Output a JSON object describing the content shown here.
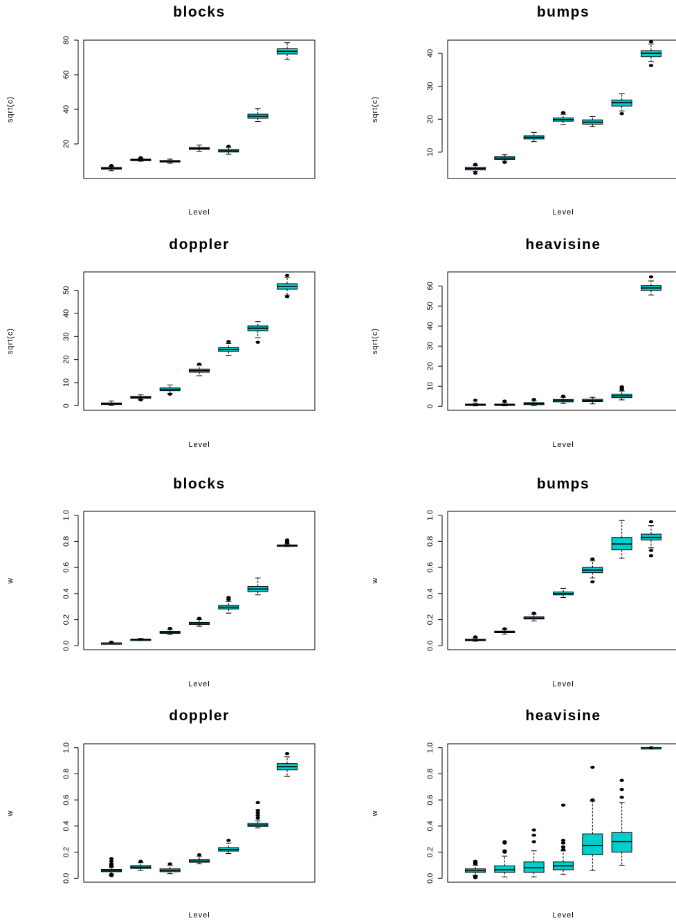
{
  "colors": {
    "box_fill": "#00cdcd",
    "stroke": "#000000",
    "background": "#ffffff"
  },
  "chart_data": [
    {
      "type": "boxplot",
      "title": "blocks",
      "xlabel": "Level",
      "ylabel": "sqrt(c)",
      "ylim": [
        0,
        80
      ],
      "yticks": [
        20,
        40,
        60,
        80
      ],
      "grid": false,
      "boxes": [
        {
          "min": 4.5,
          "q1": 5.4,
          "median": 5.9,
          "q3": 6.4,
          "max": 7.0,
          "outliers": [
            7.5
          ]
        },
        {
          "min": 10.0,
          "q1": 10.3,
          "median": 10.7,
          "q3": 11.2,
          "max": 11.6,
          "outliers": [
            12.0
          ]
        },
        {
          "min": 8.8,
          "q1": 9.5,
          "median": 9.9,
          "q3": 10.4,
          "max": 11.2,
          "outliers": []
        },
        {
          "min": 15.8,
          "q1": 16.8,
          "median": 17.4,
          "q3": 17.9,
          "max": 19.3,
          "outliers": []
        },
        {
          "min": 14.0,
          "q1": 15.3,
          "median": 16.0,
          "q3": 16.8,
          "max": 18.0,
          "outliers": [
            18.6
          ]
        },
        {
          "min": 33.0,
          "q1": 34.8,
          "median": 36.0,
          "q3": 37.2,
          "max": 40.5,
          "outliers": []
        },
        {
          "min": 68.8,
          "q1": 72.0,
          "median": 73.5,
          "q3": 75.0,
          "max": 78.5,
          "outliers": []
        }
      ]
    },
    {
      "type": "boxplot",
      "title": "bumps",
      "xlabel": "Level",
      "ylabel": "sqrt(c)",
      "ylim": [
        2,
        44
      ],
      "yticks": [
        10,
        20,
        30,
        40
      ],
      "grid": false,
      "boxes": [
        {
          "min": 4.2,
          "q1": 4.6,
          "median": 5.0,
          "q3": 5.4,
          "max": 5.9,
          "outliers": [
            3.6,
            6.3
          ]
        },
        {
          "min": 7.3,
          "q1": 7.8,
          "median": 8.2,
          "q3": 8.6,
          "max": 9.2,
          "outliers": [
            6.9
          ]
        },
        {
          "min": 13.2,
          "q1": 14.0,
          "median": 14.5,
          "q3": 15.0,
          "max": 16.0,
          "outliers": []
        },
        {
          "min": 18.4,
          "q1": 19.4,
          "median": 19.9,
          "q3": 20.4,
          "max": 21.5,
          "outliers": [
            22.0
          ]
        },
        {
          "min": 17.8,
          "q1": 18.5,
          "median": 19.1,
          "q3": 19.8,
          "max": 20.8,
          "outliers": []
        },
        {
          "min": 22.5,
          "q1": 24.0,
          "median": 25.0,
          "q3": 25.8,
          "max": 27.7,
          "outliers": [
            21.7
          ]
        },
        {
          "min": 37.5,
          "q1": 39.0,
          "median": 40.0,
          "q3": 40.8,
          "max": 42.8,
          "outliers": [
            36.3,
            43.5
          ]
        }
      ]
    },
    {
      "type": "boxplot",
      "title": "doppler",
      "xlabel": "Level",
      "ylabel": "sqrt(c)",
      "ylim": [
        -2,
        58
      ],
      "yticks": [
        0,
        10,
        20,
        30,
        40,
        50
      ],
      "grid": false,
      "boxes": [
        {
          "min": 0.0,
          "q1": 0.5,
          "median": 0.8,
          "q3": 1.2,
          "max": 2.0,
          "outliers": []
        },
        {
          "min": 2.6,
          "q1": 3.2,
          "median": 3.6,
          "q3": 4.0,
          "max": 4.7,
          "outliers": [
            2.5
          ]
        },
        {
          "min": 5.3,
          "q1": 6.5,
          "median": 7.1,
          "q3": 7.7,
          "max": 9.0,
          "outliers": [
            5.0
          ]
        },
        {
          "min": 13.0,
          "q1": 14.5,
          "median": 15.2,
          "q3": 15.9,
          "max": 17.5,
          "outliers": [
            18.0
          ]
        },
        {
          "min": 21.8,
          "q1": 23.5,
          "median": 24.3,
          "q3": 25.2,
          "max": 27.0,
          "outliers": [
            27.8
          ]
        },
        {
          "min": 29.5,
          "q1": 32.5,
          "median": 33.6,
          "q3": 34.6,
          "max": 36.5,
          "outliers": [
            27.5
          ]
        },
        {
          "min": 48.0,
          "q1": 50.5,
          "median": 51.7,
          "q3": 52.9,
          "max": 55.5,
          "outliers": [
            47.2,
            56.5
          ]
        }
      ]
    },
    {
      "type": "boxplot",
      "title": "heavisine",
      "xlabel": "Level",
      "ylabel": "sqrt(c)",
      "ylim": [
        -2,
        67
      ],
      "yticks": [
        0,
        10,
        20,
        30,
        40,
        50,
        60
      ],
      "grid": false,
      "boxes": [
        {
          "min": 0.2,
          "q1": 0.5,
          "median": 0.8,
          "q3": 1.1,
          "max": 1.6,
          "outliers": [
            3.0
          ]
        },
        {
          "min": 0.2,
          "q1": 0.5,
          "median": 0.8,
          "q3": 1.1,
          "max": 1.8,
          "outliers": [
            2.6
          ]
        },
        {
          "min": 0.3,
          "q1": 0.8,
          "median": 1.3,
          "q3": 1.8,
          "max": 2.7,
          "outliers": [
            3.4
          ]
        },
        {
          "min": 1.4,
          "q1": 2.2,
          "median": 2.8,
          "q3": 3.4,
          "max": 4.5,
          "outliers": [
            5.0
          ]
        },
        {
          "min": 1.2,
          "q1": 2.3,
          "median": 2.9,
          "q3": 3.5,
          "max": 4.5,
          "outliers": []
        },
        {
          "min": 3.2,
          "q1": 4.3,
          "median": 5.2,
          "q3": 6.0,
          "max": 7.6,
          "outliers": [
            8.3,
            9.0,
            9.7
          ]
        },
        {
          "min": 55.5,
          "q1": 57.8,
          "median": 59.0,
          "q3": 60.2,
          "max": 62.5,
          "outliers": [
            64.5
          ]
        }
      ]
    },
    {
      "type": "boxplot",
      "title": "blocks",
      "xlabel": "Level",
      "ylabel": "w",
      "ylim": [
        -0.03,
        1.03
      ],
      "yticks": [
        0.0,
        0.2,
        0.4,
        0.6,
        0.8,
        1.0
      ],
      "grid": false,
      "boxes": [
        {
          "min": 0.018,
          "q1": 0.02,
          "median": 0.021,
          "q3": 0.022,
          "max": 0.024,
          "outliers": [
            0.026,
            0.028
          ]
        },
        {
          "min": 0.04,
          "q1": 0.045,
          "median": 0.048,
          "q3": 0.051,
          "max": 0.056,
          "outliers": []
        },
        {
          "min": 0.085,
          "q1": 0.095,
          "median": 0.102,
          "q3": 0.11,
          "max": 0.125,
          "outliers": [
            0.133
          ]
        },
        {
          "min": 0.15,
          "q1": 0.163,
          "median": 0.172,
          "q3": 0.18,
          "max": 0.2,
          "outliers": [
            0.21
          ]
        },
        {
          "min": 0.25,
          "q1": 0.282,
          "median": 0.296,
          "q3": 0.31,
          "max": 0.34,
          "outliers": [
            0.355,
            0.37
          ]
        },
        {
          "min": 0.39,
          "q1": 0.415,
          "median": 0.435,
          "q3": 0.455,
          "max": 0.52,
          "outliers": []
        },
        {
          "min": 0.76,
          "q1": 0.764,
          "median": 0.768,
          "q3": 0.772,
          "max": 0.78,
          "outliers": [
            0.79,
            0.8,
            0.81
          ]
        }
      ]
    },
    {
      "type": "boxplot",
      "title": "bumps",
      "xlabel": "Level",
      "ylabel": "w",
      "ylim": [
        -0.03,
        1.03
      ],
      "yticks": [
        0.0,
        0.2,
        0.4,
        0.6,
        0.8,
        1.0
      ],
      "grid": false,
      "boxes": [
        {
          "min": 0.035,
          "q1": 0.04,
          "median": 0.045,
          "q3": 0.05,
          "max": 0.06,
          "outliers": [
            0.068
          ]
        },
        {
          "min": 0.09,
          "q1": 0.1,
          "median": 0.106,
          "q3": 0.112,
          "max": 0.125,
          "outliers": [
            0.13
          ]
        },
        {
          "min": 0.19,
          "q1": 0.205,
          "median": 0.213,
          "q3": 0.222,
          "max": 0.24,
          "outliers": [
            0.25
          ]
        },
        {
          "min": 0.37,
          "q1": 0.39,
          "median": 0.4,
          "q3": 0.412,
          "max": 0.44,
          "outliers": []
        },
        {
          "min": 0.52,
          "q1": 0.56,
          "median": 0.58,
          "q3": 0.6,
          "max": 0.65,
          "outliers": [
            0.49,
            0.665
          ]
        },
        {
          "min": 0.67,
          "q1": 0.735,
          "median": 0.78,
          "q3": 0.83,
          "max": 0.96,
          "outliers": []
        },
        {
          "min": 0.75,
          "q1": 0.81,
          "median": 0.83,
          "q3": 0.855,
          "max": 0.92,
          "outliers": [
            0.69,
            0.73,
            0.95
          ]
        }
      ]
    },
    {
      "type": "boxplot",
      "title": "doppler",
      "xlabel": "Level",
      "ylabel": "w",
      "ylim": [
        -0.03,
        1.03
      ],
      "yticks": [
        0.0,
        0.2,
        0.4,
        0.6,
        0.8,
        1.0
      ],
      "grid": false,
      "boxes": [
        {
          "min": 0.03,
          "q1": 0.05,
          "median": 0.058,
          "q3": 0.068,
          "max": 0.085,
          "outliers": [
            0.02,
            0.03,
            0.09,
            0.1,
            0.11,
            0.13,
            0.15
          ]
        },
        {
          "min": 0.06,
          "q1": 0.075,
          "median": 0.085,
          "q3": 0.097,
          "max": 0.12,
          "outliers": [
            0.13
          ]
        },
        {
          "min": 0.035,
          "q1": 0.05,
          "median": 0.06,
          "q3": 0.072,
          "max": 0.1,
          "outliers": [
            0.11
          ]
        },
        {
          "min": 0.11,
          "q1": 0.123,
          "median": 0.132,
          "q3": 0.142,
          "max": 0.165,
          "outliers": [
            0.18
          ]
        },
        {
          "min": 0.19,
          "q1": 0.208,
          "median": 0.22,
          "q3": 0.235,
          "max": 0.27,
          "outliers": [
            0.29
          ]
        },
        {
          "min": 0.385,
          "q1": 0.398,
          "median": 0.408,
          "q3": 0.42,
          "max": 0.44,
          "outliers": [
            0.46,
            0.48,
            0.5,
            0.52,
            0.58
          ]
        },
        {
          "min": 0.78,
          "q1": 0.83,
          "median": 0.855,
          "q3": 0.878,
          "max": 0.93,
          "outliers": [
            0.955
          ]
        }
      ]
    },
    {
      "type": "boxplot",
      "title": "heavisine",
      "xlabel": "Level",
      "ylabel": "w",
      "ylim": [
        -0.03,
        1.03
      ],
      "yticks": [
        0.0,
        0.2,
        0.4,
        0.6,
        0.8,
        1.0
      ],
      "grid": false,
      "boxes": [
        {
          "min": 0.02,
          "q1": 0.045,
          "median": 0.058,
          "q3": 0.072,
          "max": 0.1,
          "outliers": [
            0.005,
            0.015,
            0.11,
            0.12,
            0.13
          ]
        },
        {
          "min": 0.01,
          "q1": 0.045,
          "median": 0.065,
          "q3": 0.095,
          "max": 0.17,
          "outliers": [
            0.2,
            0.21,
            0.27,
            0.28
          ]
        },
        {
          "min": 0.01,
          "q1": 0.045,
          "median": 0.08,
          "q3": 0.125,
          "max": 0.21,
          "outliers": [
            0.28,
            0.33,
            0.37
          ]
        },
        {
          "min": 0.03,
          "q1": 0.065,
          "median": 0.095,
          "q3": 0.125,
          "max": 0.21,
          "outliers": [
            0.22,
            0.24,
            0.27,
            0.29,
            0.56
          ]
        },
        {
          "min": 0.06,
          "q1": 0.18,
          "median": 0.25,
          "q3": 0.34,
          "max": 0.59,
          "outliers": [
            0.6,
            0.85
          ]
        },
        {
          "min": 0.1,
          "q1": 0.2,
          "median": 0.28,
          "q3": 0.35,
          "max": 0.58,
          "outliers": [
            0.62,
            0.68,
            0.75
          ]
        },
        {
          "min": 1.0,
          "q1": 1.0,
          "median": 1.0,
          "q3": 1.0,
          "max": 1.0,
          "outliers": [
            1.0
          ]
        }
      ]
    }
  ]
}
